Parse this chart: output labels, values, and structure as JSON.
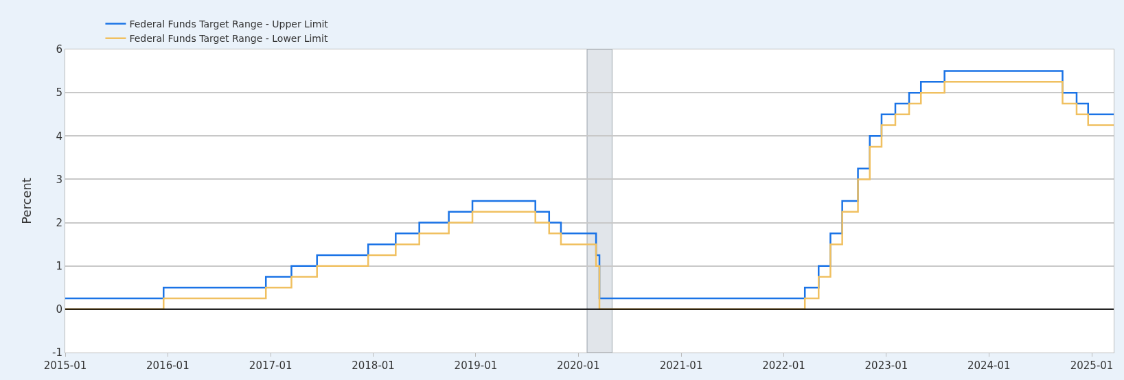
{
  "chart_data": {
    "type": "step",
    "ylabel": "Percent",
    "series": [
      {
        "name": "Federal Funds Target Range - Upper Limit",
        "color": "#1a73e6",
        "x": [
          "2015-01-01",
          "2015-12-17",
          "2016-12-15",
          "2017-03-16",
          "2017-06-15",
          "2017-12-14",
          "2018-03-22",
          "2018-06-14",
          "2018-09-27",
          "2018-12-20",
          "2019-08-01",
          "2019-09-19",
          "2019-10-31",
          "2020-03-04",
          "2020-03-16",
          "2022-03-17",
          "2022-05-05",
          "2022-06-16",
          "2022-07-28",
          "2022-09-22",
          "2022-11-03",
          "2022-12-15",
          "2023-02-02",
          "2023-03-23",
          "2023-05-04",
          "2023-07-27",
          "2024-09-19",
          "2024-11-08",
          "2024-12-19",
          "2025-03-20"
        ],
        "values": [
          0.25,
          0.5,
          0.75,
          1.0,
          1.25,
          1.5,
          1.75,
          2.0,
          2.25,
          2.5,
          2.25,
          2.0,
          1.75,
          1.25,
          0.25,
          0.5,
          1.0,
          1.75,
          2.5,
          3.25,
          4.0,
          4.5,
          4.75,
          5.0,
          5.25,
          5.5,
          5.0,
          4.75,
          4.5,
          4.5
        ]
      },
      {
        "name": "Federal Funds Target Range - Lower Limit",
        "color": "#f0c060",
        "x": [
          "2015-01-01",
          "2015-12-17",
          "2016-12-15",
          "2017-03-16",
          "2017-06-15",
          "2017-12-14",
          "2018-03-22",
          "2018-06-14",
          "2018-09-27",
          "2018-12-20",
          "2019-08-01",
          "2019-09-19",
          "2019-10-31",
          "2020-03-04",
          "2020-03-16",
          "2022-03-17",
          "2022-05-05",
          "2022-06-16",
          "2022-07-28",
          "2022-09-22",
          "2022-11-03",
          "2022-12-15",
          "2023-02-02",
          "2023-03-23",
          "2023-05-04",
          "2023-07-27",
          "2024-09-19",
          "2024-11-08",
          "2024-12-19",
          "2025-03-20"
        ],
        "values": [
          0.0,
          0.25,
          0.5,
          0.75,
          1.0,
          1.25,
          1.5,
          1.75,
          2.0,
          2.25,
          2.0,
          1.75,
          1.5,
          1.0,
          0.0,
          0.25,
          0.75,
          1.5,
          2.25,
          3.0,
          3.75,
          4.25,
          4.5,
          4.75,
          5.0,
          5.25,
          4.75,
          4.5,
          4.25,
          4.25
        ]
      }
    ],
    "xlim": [
      "2015-01-01",
      "2025-03-20"
    ],
    "xticks": [
      {
        "value": "2015-01-01",
        "label": "2015-01"
      },
      {
        "value": "2016-01-01",
        "label": "2016-01"
      },
      {
        "value": "2017-01-01",
        "label": "2017-01"
      },
      {
        "value": "2018-01-01",
        "label": "2018-01"
      },
      {
        "value": "2019-01-01",
        "label": "2019-01"
      },
      {
        "value": "2020-01-01",
        "label": "2020-01"
      },
      {
        "value": "2021-01-01",
        "label": "2021-01"
      },
      {
        "value": "2022-01-01",
        "label": "2022-01"
      },
      {
        "value": "2023-01-01",
        "label": "2023-01"
      },
      {
        "value": "2024-01-01",
        "label": "2024-01"
      },
      {
        "value": "2025-01-01",
        "label": "2025-01"
      }
    ],
    "ylim": [
      -1,
      6
    ],
    "yticks": [
      -1,
      0,
      1,
      2,
      3,
      4,
      5,
      6
    ],
    "ref_lines": [
      {
        "axis": "y",
        "value": 0,
        "color": "#000000"
      }
    ],
    "bands": [
      {
        "axis": "x",
        "from": "2020-02-01",
        "to": "2020-04-30",
        "color": "#e1e5ea"
      }
    ],
    "grid": "y",
    "legend": "top left",
    "line_style": "solid",
    "marker": "none"
  }
}
